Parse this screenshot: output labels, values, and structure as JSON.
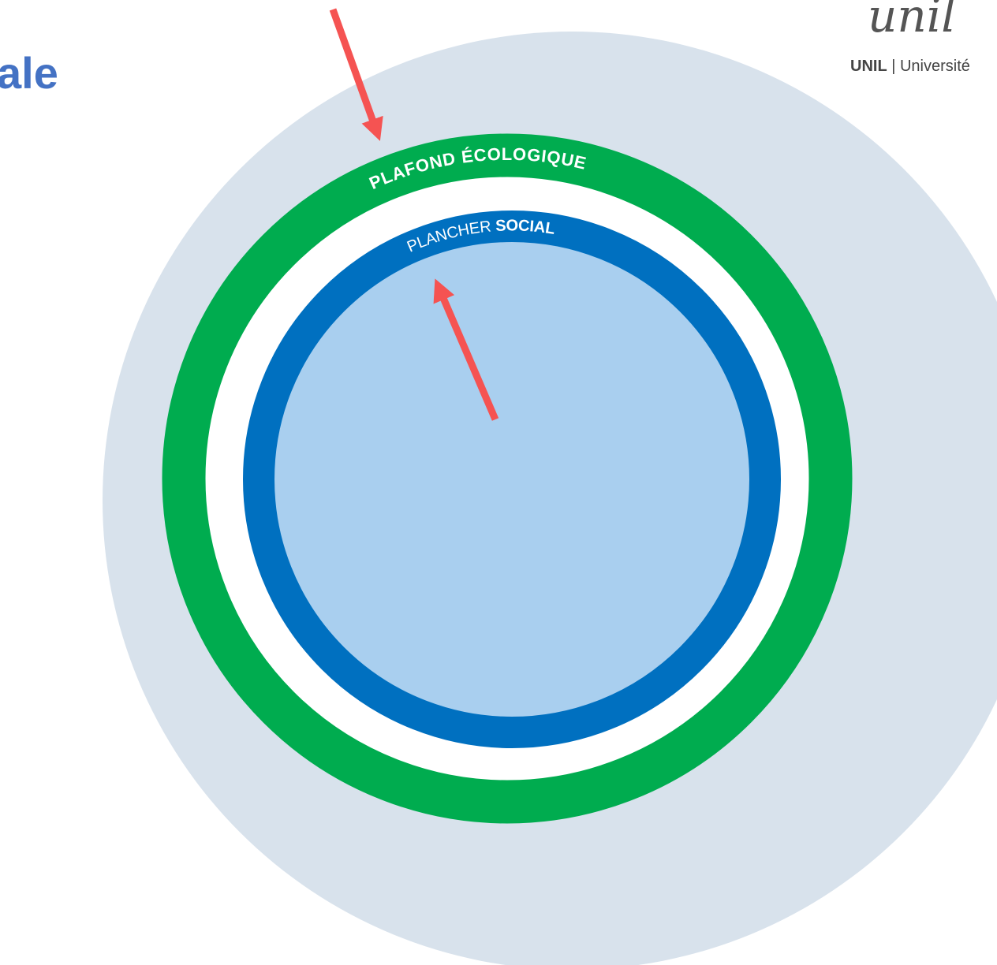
{
  "title": "ale",
  "logo": {
    "script": "unil",
    "bold": "UNIL",
    "rest": "| Université"
  },
  "rings": {
    "outer": "PLAFOND ÉCOLOGIQUE",
    "inner_light": "PLANCHER",
    "inner_bold": "SOCIAL"
  }
}
